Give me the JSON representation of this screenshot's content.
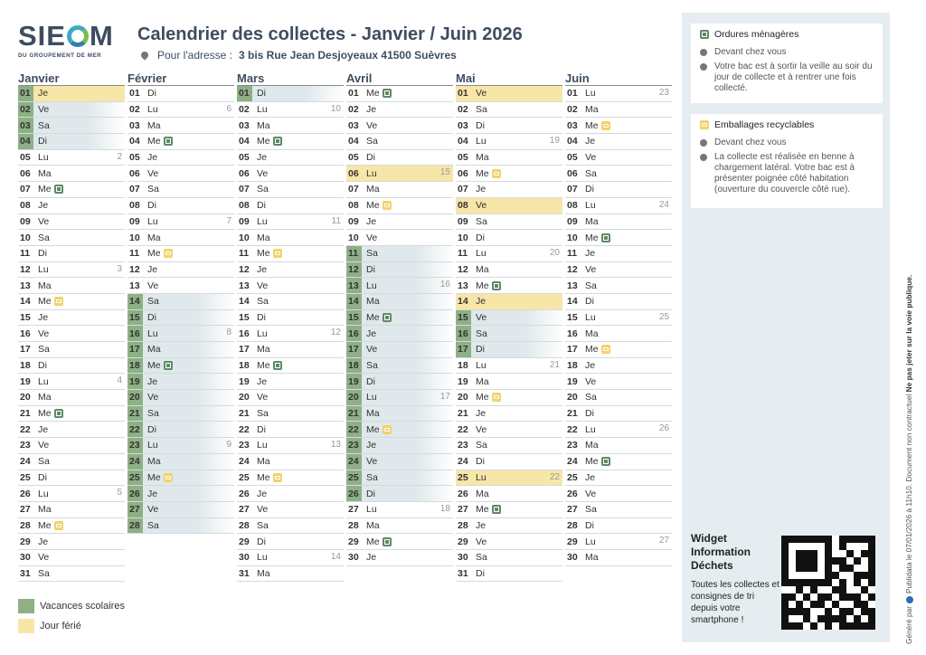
{
  "header": {
    "brand": "SIE",
    "brand_end": "M",
    "brand_subtitle": "DU GROUPEMENT DE MER",
    "title": "Calendrier des collectes - Janvier / Juin 2026",
    "address_label": "Pour l'adresse :",
    "address": "3 bis Rue Jean Desjoyeaux 41500 Suèvres"
  },
  "colors": {
    "vacances": "#8eb085",
    "ferie": "#f7e6a8",
    "ordures": "#5e8a66",
    "emballages": "#f2d36a"
  },
  "months": [
    {
      "name": "Janvier",
      "days": [
        {
          "n": "01",
          "d": "Je",
          "v": true,
          "f": true
        },
        {
          "n": "02",
          "d": "Ve",
          "v": true
        },
        {
          "n": "03",
          "d": "Sa",
          "v": true
        },
        {
          "n": "04",
          "d": "Di",
          "v": true
        },
        {
          "n": "05",
          "d": "Lu",
          "w": "2"
        },
        {
          "n": "06",
          "d": "Ma"
        },
        {
          "n": "07",
          "d": "Me",
          "c": "om"
        },
        {
          "n": "08",
          "d": "Je"
        },
        {
          "n": "09",
          "d": "Ve"
        },
        {
          "n": "10",
          "d": "Sa"
        },
        {
          "n": "11",
          "d": "Di"
        },
        {
          "n": "12",
          "d": "Lu",
          "w": "3"
        },
        {
          "n": "13",
          "d": "Ma"
        },
        {
          "n": "14",
          "d": "Me",
          "c": "er"
        },
        {
          "n": "15",
          "d": "Je"
        },
        {
          "n": "16",
          "d": "Ve"
        },
        {
          "n": "17",
          "d": "Sa"
        },
        {
          "n": "18",
          "d": "Di"
        },
        {
          "n": "19",
          "d": "Lu",
          "w": "4"
        },
        {
          "n": "20",
          "d": "Ma"
        },
        {
          "n": "21",
          "d": "Me",
          "c": "om"
        },
        {
          "n": "22",
          "d": "Je"
        },
        {
          "n": "23",
          "d": "Ve"
        },
        {
          "n": "24",
          "d": "Sa"
        },
        {
          "n": "25",
          "d": "Di"
        },
        {
          "n": "26",
          "d": "Lu",
          "w": "5"
        },
        {
          "n": "27",
          "d": "Ma"
        },
        {
          "n": "28",
          "d": "Me",
          "c": "er"
        },
        {
          "n": "29",
          "d": "Je"
        },
        {
          "n": "30",
          "d": "Ve"
        },
        {
          "n": "31",
          "d": "Sa"
        }
      ]
    },
    {
      "name": "Février",
      "days": [
        {
          "n": "01",
          "d": "Di"
        },
        {
          "n": "02",
          "d": "Lu",
          "w": "6"
        },
        {
          "n": "03",
          "d": "Ma"
        },
        {
          "n": "04",
          "d": "Me",
          "c": "om"
        },
        {
          "n": "05",
          "d": "Je"
        },
        {
          "n": "06",
          "d": "Ve"
        },
        {
          "n": "07",
          "d": "Sa"
        },
        {
          "n": "08",
          "d": "Di"
        },
        {
          "n": "09",
          "d": "Lu",
          "w": "7"
        },
        {
          "n": "10",
          "d": "Ma"
        },
        {
          "n": "11",
          "d": "Me",
          "c": "er"
        },
        {
          "n": "12",
          "d": "Je"
        },
        {
          "n": "13",
          "d": "Ve"
        },
        {
          "n": "14",
          "d": "Sa",
          "v": true
        },
        {
          "n": "15",
          "d": "Di",
          "v": true
        },
        {
          "n": "16",
          "d": "Lu",
          "w": "8",
          "v": true
        },
        {
          "n": "17",
          "d": "Ma",
          "v": true
        },
        {
          "n": "18",
          "d": "Me",
          "c": "om",
          "v": true
        },
        {
          "n": "19",
          "d": "Je",
          "v": true
        },
        {
          "n": "20",
          "d": "Ve",
          "v": true
        },
        {
          "n": "21",
          "d": "Sa",
          "v": true
        },
        {
          "n": "22",
          "d": "Di",
          "v": true
        },
        {
          "n": "23",
          "d": "Lu",
          "w": "9",
          "v": true
        },
        {
          "n": "24",
          "d": "Ma",
          "v": true
        },
        {
          "n": "25",
          "d": "Me",
          "c": "er",
          "v": true
        },
        {
          "n": "26",
          "d": "Je",
          "v": true
        },
        {
          "n": "27",
          "d": "Ve",
          "v": true
        },
        {
          "n": "28",
          "d": "Sa",
          "v": true
        }
      ]
    },
    {
      "name": "Mars",
      "days": [
        {
          "n": "01",
          "d": "Di",
          "v": true
        },
        {
          "n": "02",
          "d": "Lu",
          "w": "10"
        },
        {
          "n": "03",
          "d": "Ma"
        },
        {
          "n": "04",
          "d": "Me",
          "c": "om"
        },
        {
          "n": "05",
          "d": "Je"
        },
        {
          "n": "06",
          "d": "Ve"
        },
        {
          "n": "07",
          "d": "Sa"
        },
        {
          "n": "08",
          "d": "Di"
        },
        {
          "n": "09",
          "d": "Lu",
          "w": "11"
        },
        {
          "n": "10",
          "d": "Ma"
        },
        {
          "n": "11",
          "d": "Me",
          "c": "er"
        },
        {
          "n": "12",
          "d": "Je"
        },
        {
          "n": "13",
          "d": "Ve"
        },
        {
          "n": "14",
          "d": "Sa"
        },
        {
          "n": "15",
          "d": "Di"
        },
        {
          "n": "16",
          "d": "Lu",
          "w": "12"
        },
        {
          "n": "17",
          "d": "Ma"
        },
        {
          "n": "18",
          "d": "Me",
          "c": "om"
        },
        {
          "n": "19",
          "d": "Je"
        },
        {
          "n": "20",
          "d": "Ve"
        },
        {
          "n": "21",
          "d": "Sa"
        },
        {
          "n": "22",
          "d": "Di"
        },
        {
          "n": "23",
          "d": "Lu",
          "w": "13"
        },
        {
          "n": "24",
          "d": "Ma"
        },
        {
          "n": "25",
          "d": "Me",
          "c": "er"
        },
        {
          "n": "26",
          "d": "Je"
        },
        {
          "n": "27",
          "d": "Ve"
        },
        {
          "n": "28",
          "d": "Sa"
        },
        {
          "n": "29",
          "d": "Di"
        },
        {
          "n": "30",
          "d": "Lu",
          "w": "14"
        },
        {
          "n": "31",
          "d": "Ma"
        }
      ]
    },
    {
      "name": "Avril",
      "days": [
        {
          "n": "01",
          "d": "Me",
          "c": "om"
        },
        {
          "n": "02",
          "d": "Je"
        },
        {
          "n": "03",
          "d": "Ve"
        },
        {
          "n": "04",
          "d": "Sa"
        },
        {
          "n": "05",
          "d": "Di"
        },
        {
          "n": "06",
          "d": "Lu",
          "w": "15",
          "f": true
        },
        {
          "n": "07",
          "d": "Ma"
        },
        {
          "n": "08",
          "d": "Me",
          "c": "er"
        },
        {
          "n": "09",
          "d": "Je"
        },
        {
          "n": "10",
          "d": "Ve"
        },
        {
          "n": "11",
          "d": "Sa",
          "v": true
        },
        {
          "n": "12",
          "d": "Di",
          "v": true
        },
        {
          "n": "13",
          "d": "Lu",
          "w": "16",
          "v": true
        },
        {
          "n": "14",
          "d": "Ma",
          "v": true
        },
        {
          "n": "15",
          "d": "Me",
          "c": "om",
          "v": true
        },
        {
          "n": "16",
          "d": "Je",
          "v": true
        },
        {
          "n": "17",
          "d": "Ve",
          "v": true
        },
        {
          "n": "18",
          "d": "Sa",
          "v": true
        },
        {
          "n": "19",
          "d": "Di",
          "v": true
        },
        {
          "n": "20",
          "d": "Lu",
          "w": "17",
          "v": true
        },
        {
          "n": "21",
          "d": "Ma",
          "v": true
        },
        {
          "n": "22",
          "d": "Me",
          "c": "er",
          "v": true
        },
        {
          "n": "23",
          "d": "Je",
          "v": true
        },
        {
          "n": "24",
          "d": "Ve",
          "v": true
        },
        {
          "n": "25",
          "d": "Sa",
          "v": true
        },
        {
          "n": "26",
          "d": "Di",
          "v": true
        },
        {
          "n": "27",
          "d": "Lu",
          "w": "18"
        },
        {
          "n": "28",
          "d": "Ma"
        },
        {
          "n": "29",
          "d": "Me",
          "c": "om"
        },
        {
          "n": "30",
          "d": "Je"
        }
      ]
    },
    {
      "name": "Mai",
      "days": [
        {
          "n": "01",
          "d": "Ve",
          "f": true
        },
        {
          "n": "02",
          "d": "Sa"
        },
        {
          "n": "03",
          "d": "Di"
        },
        {
          "n": "04",
          "d": "Lu",
          "w": "19"
        },
        {
          "n": "05",
          "d": "Ma"
        },
        {
          "n": "06",
          "d": "Me",
          "c": "er"
        },
        {
          "n": "07",
          "d": "Je"
        },
        {
          "n": "08",
          "d": "Ve",
          "f": true
        },
        {
          "n": "09",
          "d": "Sa"
        },
        {
          "n": "10",
          "d": "Di"
        },
        {
          "n": "11",
          "d": "Lu",
          "w": "20"
        },
        {
          "n": "12",
          "d": "Ma"
        },
        {
          "n": "13",
          "d": "Me",
          "c": "om"
        },
        {
          "n": "14",
          "d": "Je",
          "f": true
        },
        {
          "n": "15",
          "d": "Ve",
          "v": true
        },
        {
          "n": "16",
          "d": "Sa",
          "v": true
        },
        {
          "n": "17",
          "d": "Di",
          "v": true
        },
        {
          "n": "18",
          "d": "Lu",
          "w": "21"
        },
        {
          "n": "19",
          "d": "Ma"
        },
        {
          "n": "20",
          "d": "Me",
          "c": "er"
        },
        {
          "n": "21",
          "d": "Je"
        },
        {
          "n": "22",
          "d": "Ve"
        },
        {
          "n": "23",
          "d": "Sa"
        },
        {
          "n": "24",
          "d": "Di"
        },
        {
          "n": "25",
          "d": "Lu",
          "w": "22",
          "f": true
        },
        {
          "n": "26",
          "d": "Ma"
        },
        {
          "n": "27",
          "d": "Me",
          "c": "om"
        },
        {
          "n": "28",
          "d": "Je"
        },
        {
          "n": "29",
          "d": "Ve"
        },
        {
          "n": "30",
          "d": "Sa"
        },
        {
          "n": "31",
          "d": "Di"
        }
      ]
    },
    {
      "name": "Juin",
      "days": [
        {
          "n": "01",
          "d": "Lu",
          "w": "23"
        },
        {
          "n": "02",
          "d": "Ma"
        },
        {
          "n": "03",
          "d": "Me",
          "c": "er"
        },
        {
          "n": "04",
          "d": "Je"
        },
        {
          "n": "05",
          "d": "Ve"
        },
        {
          "n": "06",
          "d": "Sa"
        },
        {
          "n": "07",
          "d": "Di"
        },
        {
          "n": "08",
          "d": "Lu",
          "w": "24"
        },
        {
          "n": "09",
          "d": "Ma"
        },
        {
          "n": "10",
          "d": "Me",
          "c": "om"
        },
        {
          "n": "11",
          "d": "Je"
        },
        {
          "n": "12",
          "d": "Ve"
        },
        {
          "n": "13",
          "d": "Sa"
        },
        {
          "n": "14",
          "d": "Di"
        },
        {
          "n": "15",
          "d": "Lu",
          "w": "25"
        },
        {
          "n": "16",
          "d": "Ma"
        },
        {
          "n": "17",
          "d": "Me",
          "c": "er"
        },
        {
          "n": "18",
          "d": "Je"
        },
        {
          "n": "19",
          "d": "Ve"
        },
        {
          "n": "20",
          "d": "Sa"
        },
        {
          "n": "21",
          "d": "Di"
        },
        {
          "n": "22",
          "d": "Lu",
          "w": "26"
        },
        {
          "n": "23",
          "d": "Ma"
        },
        {
          "n": "24",
          "d": "Me",
          "c": "om"
        },
        {
          "n": "25",
          "d": "Je"
        },
        {
          "n": "26",
          "d": "Ve"
        },
        {
          "n": "27",
          "d": "Sa"
        },
        {
          "n": "28",
          "d": "Di"
        },
        {
          "n": "29",
          "d": "Lu",
          "w": "27"
        },
        {
          "n": "30",
          "d": "Ma"
        }
      ]
    }
  ],
  "legend": {
    "vacances": "Vacances scolaires",
    "ferie": "Jour férié"
  },
  "ordures": {
    "title": "Ordures ménagères",
    "location": "Devant chez vous",
    "info": "Votre bac est à sortir la veille au soir du jour de collecte et à rentrer une fois collecté."
  },
  "emballages": {
    "title": "Emballages recyclables",
    "location": "Devant chez vous",
    "info": "La collecte est réalisée en benne à chargement latéral. Votre bac est à présenter poignée côté habitation (ouverture du couvercle côté rue)."
  },
  "widget": {
    "title": "Widget Information Déchets",
    "description": "Toutes les collectes et consignes de tri depuis votre smartphone !"
  },
  "footer": {
    "generated": "Généré par",
    "publidata": "Publidata",
    "date_text": "le 07/01/2026 à 11h10. Document non contractuel",
    "warning": "Ne pas jeter sur la voie publique."
  }
}
